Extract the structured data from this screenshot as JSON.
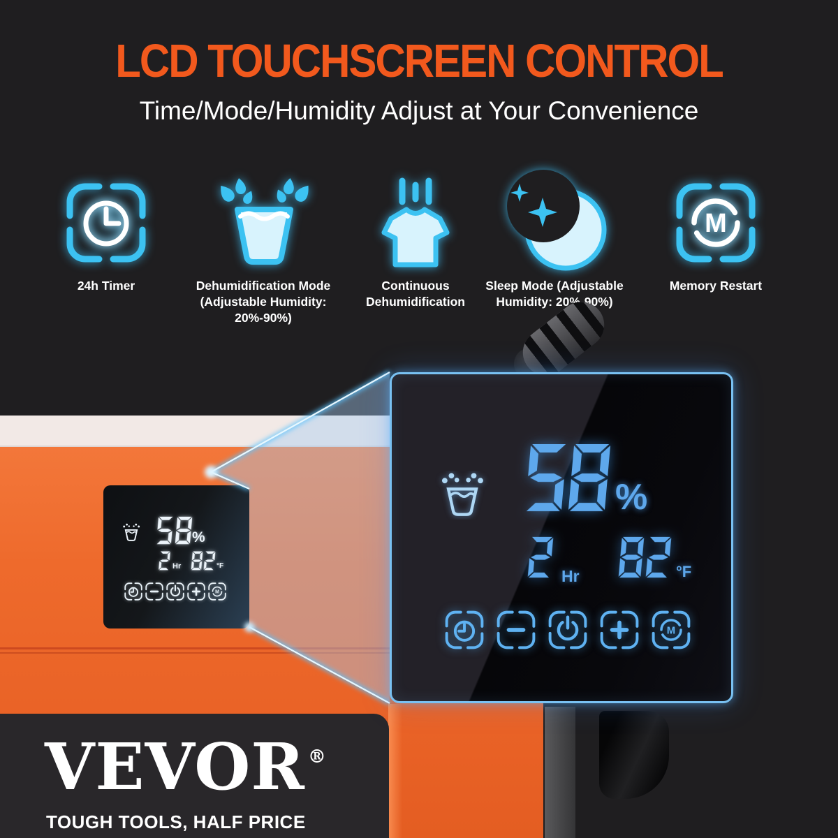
{
  "header": {
    "title": "LCD TOUCHSCREEN CONTROL",
    "subtitle": "Time/Mode/Humidity Adjust at Your Convenience",
    "title_color": "#f2591d"
  },
  "features": [
    {
      "icon": "clock-timer-bracket-icon",
      "label_lines": [
        "24h Timer"
      ]
    },
    {
      "icon": "water-cup-splash-icon",
      "label_lines": [
        "Dehumidification Mode",
        "(Adjustable Humidity: 20%-90%)"
      ]
    },
    {
      "icon": "shirt-drying-icon",
      "label_lines": [
        "Continuous",
        "Dehumidification"
      ]
    },
    {
      "icon": "moon-stars-icon",
      "label_lines": [
        "Sleep Mode (Adjustable",
        "Humidity: 20%-90%)"
      ]
    },
    {
      "icon": "memory-restart-bracket-icon",
      "label_lines": [
        "Memory Restart"
      ]
    }
  ],
  "lcd": {
    "humidity_value": "58",
    "humidity_unit": "%",
    "timer_value": "2",
    "timer_unit": "Hr",
    "temperature_value": "82",
    "temperature_unit": "°F",
    "status_icon": "water-cup-splash-icon",
    "buttons": [
      {
        "name": "timer",
        "glyph": "clock"
      },
      {
        "name": "decrease",
        "glyph": "minus"
      },
      {
        "name": "power",
        "glyph": "power"
      },
      {
        "name": "increase",
        "glyph": "plus"
      },
      {
        "name": "memory",
        "glyph": "memory"
      }
    ]
  },
  "brand": {
    "logo": "VEVOR",
    "registered_mark": "®",
    "tagline": "TOUGH TOOLS, HALF PRICE"
  },
  "colors": {
    "accent_orange": "#f2591d",
    "product_orange": "#ee6a2c",
    "icon_cyan": "#3cc2f2",
    "lcd_digit_blue": "#5ea8ec",
    "lcd_button_blue": "#5fb2f2",
    "beam_blue": "#a8cef3",
    "background": "#1f1e20"
  }
}
